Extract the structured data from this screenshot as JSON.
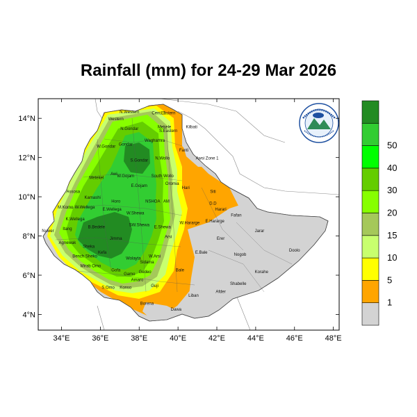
{
  "title": "Rainfall (mm) for 24-29 Mar 2026",
  "map": {
    "lon_ticks": [
      "34°E",
      "36°E",
      "38°E",
      "40°E",
      "42°E",
      "44°E",
      "46°E",
      "48°E"
    ],
    "lat_ticks": [
      "14°N",
      "12°N",
      "10°N",
      "8°N",
      "6°N",
      "4°N"
    ],
    "lon_range": [
      32.8,
      48.3
    ],
    "lat_range": [
      3.2,
      15.0
    ],
    "regions": [
      {
        "name": "N.Western",
        "lon": 37.5,
        "lat": 14.25
      },
      {
        "name": "Cent. T",
        "lon": 39.0,
        "lat": 14.2
      },
      {
        "name": "Eastern",
        "lon": 39.5,
        "lat": 14.2
      },
      {
        "name": "Western",
        "lon": 36.8,
        "lat": 13.9
      },
      {
        "name": "Mekele",
        "lon": 39.3,
        "lat": 13.5
      },
      {
        "name": "N.Gondar",
        "lon": 37.5,
        "lat": 13.4
      },
      {
        "name": "S.Eastern",
        "lon": 39.5,
        "lat": 13.3
      },
      {
        "name": "Kilbati",
        "lon": 40.7,
        "lat": 13.5
      },
      {
        "name": "Waghamra",
        "lon": 38.8,
        "lat": 12.8
      },
      {
        "name": "W.Gondar",
        "lon": 36.3,
        "lat": 12.5
      },
      {
        "name": "Gondar",
        "lon": 37.3,
        "lat": 12.6
      },
      {
        "name": "Fanti",
        "lon": 40.3,
        "lat": 12.3
      },
      {
        "name": "S.Gondar",
        "lon": 38.0,
        "lat": 11.8
      },
      {
        "name": "N.Wollo",
        "lon": 39.2,
        "lat": 11.9
      },
      {
        "name": "Awsi Zone 1",
        "lon": 41.5,
        "lat": 11.9
      },
      {
        "name": "Awi",
        "lon": 36.7,
        "lat": 11.1
      },
      {
        "name": "W.Gojam",
        "lon": 37.3,
        "lat": 11.0
      },
      {
        "name": "Metekel",
        "lon": 35.8,
        "lat": 10.9
      },
      {
        "name": "South Wollo",
        "lon": 39.2,
        "lat": 11.0
      },
      {
        "name": "E.Gojam",
        "lon": 38.0,
        "lat": 10.5
      },
      {
        "name": "Oromia",
        "lon": 39.7,
        "lat": 10.6
      },
      {
        "name": "Hari",
        "lon": 40.4,
        "lat": 10.4
      },
      {
        "name": "Assosa",
        "lon": 34.6,
        "lat": 10.2
      },
      {
        "name": "Siti",
        "lon": 41.8,
        "lat": 10.2
      },
      {
        "name": "Kamashi",
        "lon": 35.6,
        "lat": 9.9
      },
      {
        "name": "Horo",
        "lon": 36.8,
        "lat": 9.7
      },
      {
        "name": "NSHOA",
        "lon": 38.7,
        "lat": 9.7
      },
      {
        "name": "AM",
        "lon": 39.4,
        "lat": 9.7
      },
      {
        "name": "D.D",
        "lon": 41.8,
        "lat": 9.6
      },
      {
        "name": "M.Komo",
        "lon": 34.2,
        "lat": 9.4
      },
      {
        "name": "W.Wellega",
        "lon": 35.2,
        "lat": 9.4
      },
      {
        "name": "E.Wellega",
        "lon": 36.6,
        "lat": 9.3
      },
      {
        "name": "W.Shewa",
        "lon": 37.8,
        "lat": 9.1
      },
      {
        "name": "Harari",
        "lon": 42.2,
        "lat": 9.3
      },
      {
        "name": "Fafan",
        "lon": 43.0,
        "lat": 9.0
      },
      {
        "name": "K.Wellega",
        "lon": 34.7,
        "lat": 8.8
      },
      {
        "name": "W.Hararge",
        "lon": 40.6,
        "lat": 8.6
      },
      {
        "name": "E.Hararge",
        "lon": 41.9,
        "lat": 8.7
      },
      {
        "name": "Itang",
        "lon": 34.3,
        "lat": 8.3
      },
      {
        "name": "B.Bedele",
        "lon": 35.8,
        "lat": 8.4
      },
      {
        "name": "SW.Shewa",
        "lon": 38.0,
        "lat": 8.5
      },
      {
        "name": "E.Shewa",
        "lon": 39.2,
        "lat": 8.4
      },
      {
        "name": "Nuwer",
        "lon": 33.3,
        "lat": 8.2
      },
      {
        "name": "Jarar",
        "lon": 44.2,
        "lat": 8.2
      },
      {
        "name": "Jimma",
        "lon": 36.8,
        "lat": 7.8
      },
      {
        "name": "Arsi",
        "lon": 39.5,
        "lat": 7.9
      },
      {
        "name": "Erer",
        "lon": 42.2,
        "lat": 7.8
      },
      {
        "name": "Agnewak",
        "lon": 34.3,
        "lat": 7.6
      },
      {
        "name": "Sheka",
        "lon": 35.4,
        "lat": 7.4
      },
      {
        "name": "Kefa",
        "lon": 36.1,
        "lat": 7.1
      },
      {
        "name": "E.Bale",
        "lon": 41.2,
        "lat": 7.1
      },
      {
        "name": "Nogob",
        "lon": 43.2,
        "lat": 7.0
      },
      {
        "name": "Doolo",
        "lon": 46.0,
        "lat": 7.2
      },
      {
        "name": "Bench Sheko",
        "lon": 35.2,
        "lat": 6.9
      },
      {
        "name": "W.Arsi",
        "lon": 38.8,
        "lat": 6.9
      },
      {
        "name": "Wolayta",
        "lon": 37.7,
        "lat": 6.8
      },
      {
        "name": "Mirab Omo",
        "lon": 35.5,
        "lat": 6.4
      },
      {
        "name": "Sidama",
        "lon": 38.4,
        "lat": 6.6
      },
      {
        "name": "Korahe",
        "lon": 44.3,
        "lat": 6.1
      },
      {
        "name": "Bale",
        "lon": 40.1,
        "lat": 6.2
      },
      {
        "name": "Gofa",
        "lon": 36.8,
        "lat": 6.2
      },
      {
        "name": "Gamo",
        "lon": 37.5,
        "lat": 6.0
      },
      {
        "name": "Gedeo",
        "lon": 38.3,
        "lat": 6.1
      },
      {
        "name": "Amaro",
        "lon": 37.9,
        "lat": 5.7
      },
      {
        "name": "Guji",
        "lon": 38.8,
        "lat": 5.4
      },
      {
        "name": "Shabelle",
        "lon": 43.1,
        "lat": 5.5
      },
      {
        "name": "S.Omo",
        "lon": 36.4,
        "lat": 5.3
      },
      {
        "name": "Konso",
        "lon": 37.3,
        "lat": 5.3
      },
      {
        "name": "Afder",
        "lon": 42.2,
        "lat": 5.1
      },
      {
        "name": "Liban",
        "lon": 40.8,
        "lat": 4.9
      },
      {
        "name": "Borena",
        "lon": 38.4,
        "lat": 4.5
      },
      {
        "name": "Dawa",
        "lon": 39.9,
        "lat": 4.2
      }
    ]
  },
  "colorbar": {
    "levels": [
      "1",
      "5",
      "10",
      "15",
      "20",
      "30",
      "40",
      "50"
    ],
    "colors": [
      "#d3d3d3",
      "#ffa500",
      "#ffff00",
      "#c8ff6e",
      "#a5c85a",
      "#87ff00",
      "#64cd00",
      "#00ff00",
      "#32cd32",
      "#228b22"
    ]
  },
  "colors": {
    "land_gray": "#d3d3d3",
    "border": "#555555"
  }
}
